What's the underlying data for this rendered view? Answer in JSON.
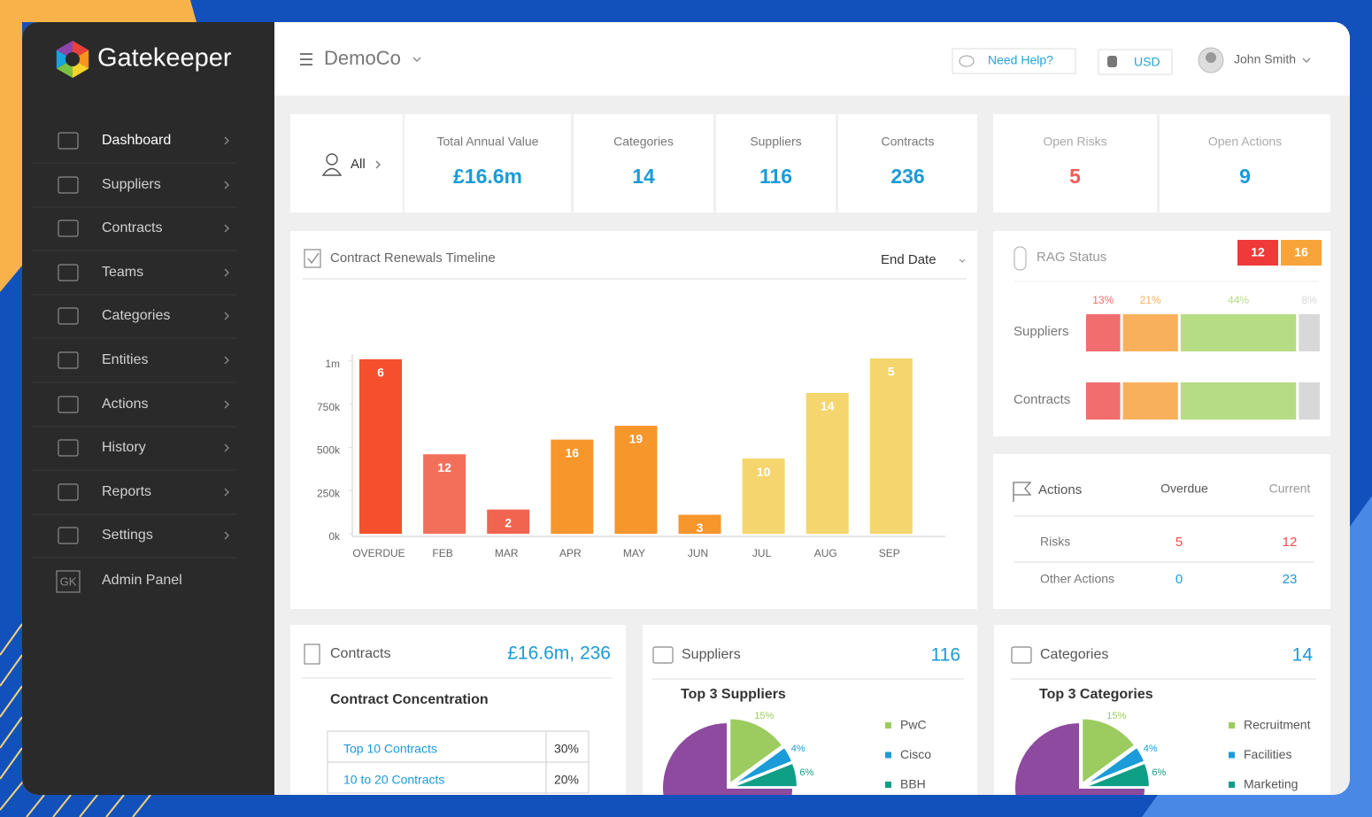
{
  "brand": "Gatekeeper",
  "sidebar": {
    "items": [
      "Dashboard",
      "Suppliers",
      "Contracts",
      "Teams",
      "Categories",
      "Entities",
      "Actions",
      "History",
      "Reports",
      "Settings"
    ],
    "admin": {
      "label": "Admin Panel",
      "icon": "GK"
    }
  },
  "header": {
    "company": "DemoCo",
    "help": "Need Help?",
    "currency": "USD",
    "user": "John Smith"
  },
  "kpis": {
    "filter": "All",
    "items": [
      {
        "label": "Total Annual Value",
        "value": "£16.6m"
      },
      {
        "label": "Categories",
        "value": 14
      },
      {
        "label": "Suppliers",
        "value": 116
      },
      {
        "label": "Contracts",
        "value": 236
      }
    ],
    "risk_items": [
      {
        "label": "Open Risks",
        "value": 5,
        "color": "#f15a5a"
      },
      {
        "label": "Open Actions",
        "value": 9,
        "color": "#1a9bd7"
      }
    ]
  },
  "actions_table": {
    "title": "Actions",
    "columns": [
      "Overdue",
      "Current"
    ],
    "rows": [
      {
        "label": "Risks",
        "values": [
          5,
          12
        ],
        "color": "#f04b4b"
      },
      {
        "label": "Other Actions",
        "values": [
          0,
          23
        ],
        "color": "#1a9bd7"
      }
    ]
  },
  "cards": {
    "contracts": {
      "title": "Contracts",
      "total": "£16.6m, 236",
      "subtitle": "Contract Concentration",
      "rows": [
        [
          "Top 10 Contracts",
          "30%"
        ],
        [
          "10 to 20 Contracts",
          "20%"
        ]
      ]
    },
    "suppliers": {
      "title": "Suppliers",
      "total": 116
    },
    "categories": {
      "title": "Categories",
      "total": 14
    }
  },
  "chart_data": [
    {
      "type": "bar",
      "title": "Contract Renewals Timeline",
      "sort": "End Date",
      "categories": [
        "OVERDUE",
        "FEB",
        "MAR",
        "APR",
        "MAY",
        "JUN",
        "JUL",
        "AUG",
        "SEP"
      ],
      "values": [
        1010000,
        460000,
        140000,
        545000,
        625000,
        110000,
        435000,
        815000,
        1015000
      ],
      "counts": [
        6,
        12,
        2,
        16,
        19,
        3,
        10,
        14,
        5
      ],
      "colors": [
        "#f4502e",
        "#f2705a",
        "#f06450",
        "#f7962a",
        "#f7962a",
        "#f7962a",
        "#f5d66e",
        "#f5d66e",
        "#f5d66e"
      ],
      "ylim": [
        0,
        1040000
      ],
      "yticks": [
        {
          "value": 0,
          "label": "0k"
        },
        {
          "value": 250000,
          "label": "250k"
        },
        {
          "value": 500000,
          "label": "500k"
        },
        {
          "value": 750000,
          "label": "750k"
        },
        {
          "value": 1000000,
          "label": "1m"
        }
      ]
    },
    {
      "type": "stacked-bar",
      "title": "RAG Status",
      "flags": [
        {
          "value": 12,
          "color": "#f03a3a"
        },
        {
          "value": 16,
          "color": "#f7a43a"
        }
      ],
      "categories": [
        "Suppliers",
        "Contracts"
      ],
      "series": [
        {
          "color": "#f26d6d",
          "values": [
            13,
            13
          ],
          "value_labels": [
            "13%",
            null
          ]
        },
        {
          "color": "#f9b05c",
          "values": [
            21,
            21
          ],
          "value_labels": [
            "21%",
            null
          ]
        },
        {
          "color": "#b6dc85",
          "values": [
            44,
            44
          ],
          "value_labels": [
            "44%",
            null
          ]
        },
        {
          "color": "#d8d8d8",
          "values": [
            8,
            8
          ],
          "value_labels": [
            "8%",
            null
          ]
        }
      ]
    },
    {
      "type": "pie",
      "title": "Top 3 Suppliers",
      "categories": [
        "PwC",
        "Cisco",
        "BBH",
        null
      ],
      "values": [
        15,
        4,
        6,
        75
      ],
      "value_labels": [
        "15%",
        "4%",
        "6%",
        null
      ],
      "colors": [
        "#9ccb5f",
        "#1b9bd7",
        "#0f9e86",
        "#8d4a9e"
      ]
    },
    {
      "type": "pie",
      "title": "Top 3 Categories",
      "categories": [
        "Recruitment",
        "Facilities",
        "Marketing",
        null
      ],
      "values": [
        15,
        4,
        6,
        75
      ],
      "value_labels": [
        "15%",
        "4%",
        "6%",
        null
      ],
      "colors": [
        "#9ccb5f",
        "#1b9bd7",
        "#0f9e86",
        "#8d4a9e"
      ]
    }
  ]
}
